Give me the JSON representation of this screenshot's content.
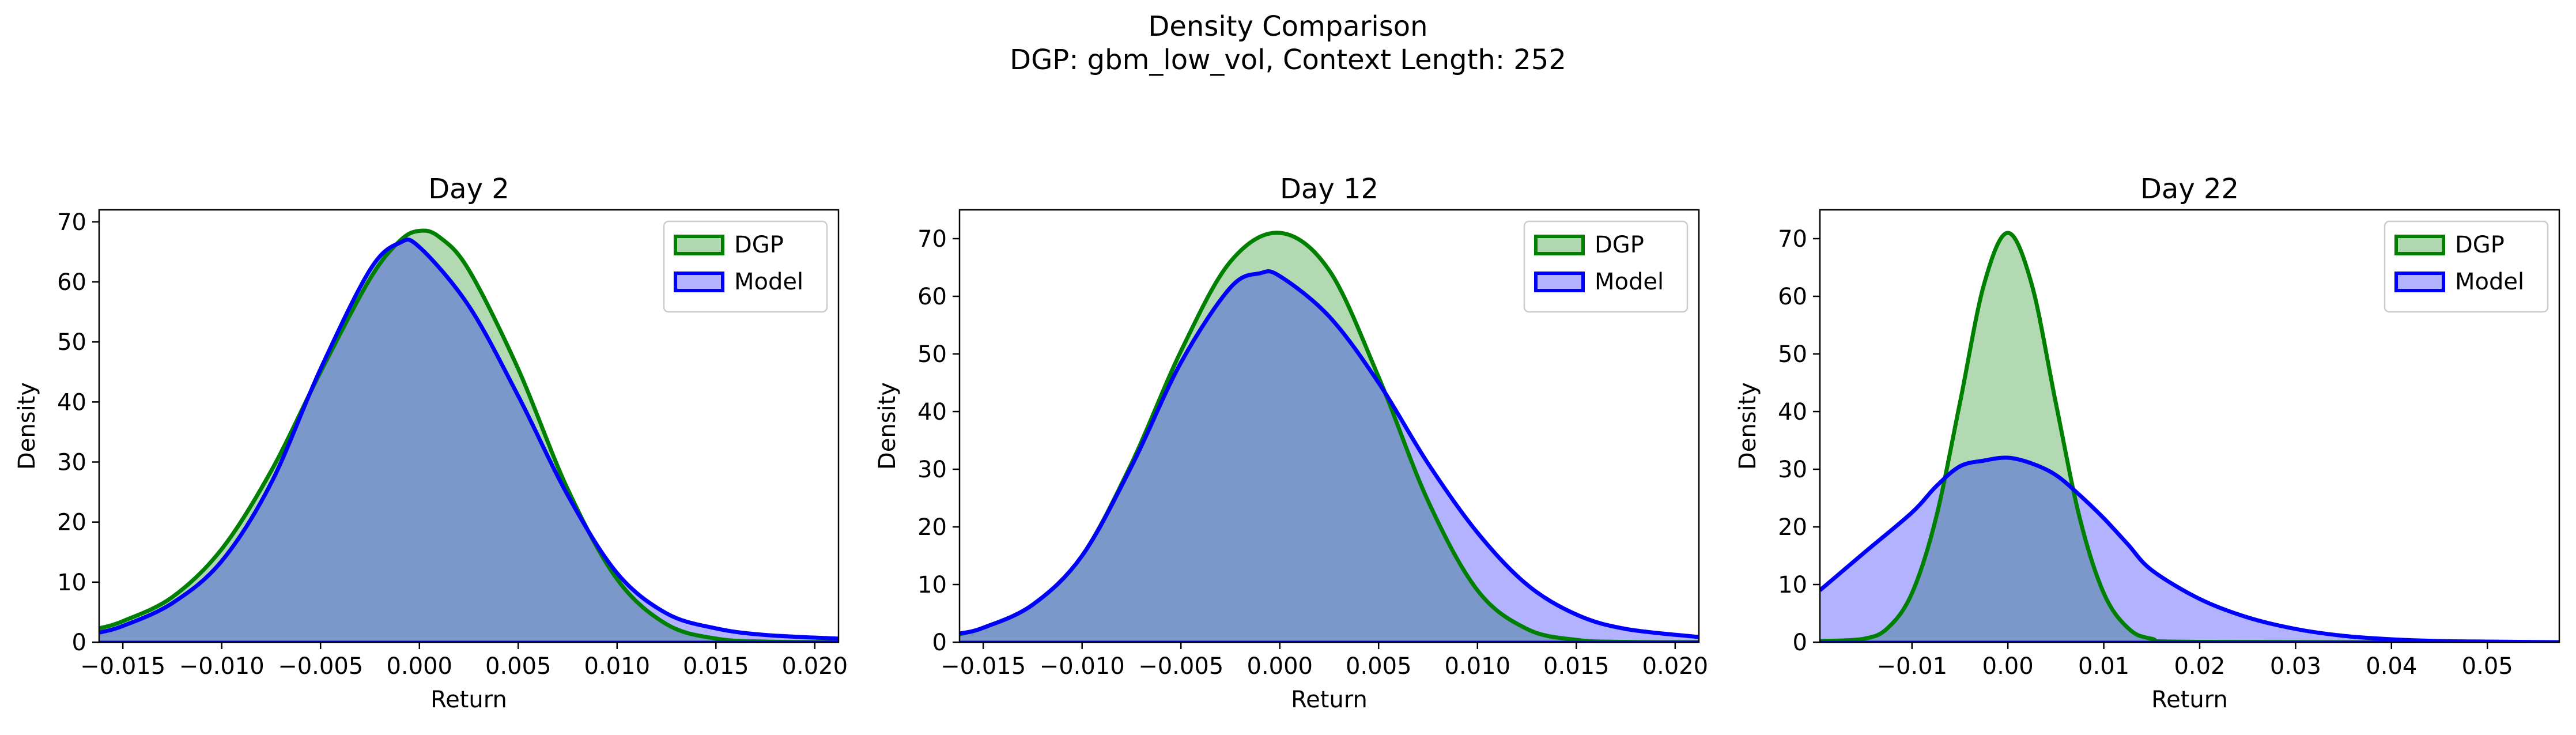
{
  "figure": {
    "title_line1": "Density Comparison",
    "title_line2": "DGP: gbm_low_vol, Context Length: 252"
  },
  "colors": {
    "dgp_line": "#008000",
    "dgp_fill": "#b2d8b2",
    "model_line": "#0000ff",
    "model_fill": "#b2b2ff",
    "overlap_fill": "#7f97c8"
  },
  "chart_data": [
    {
      "type": "area",
      "title": "Day 2",
      "xlabel": "Return",
      "ylabel": "Density",
      "xlim": [
        -0.0162,
        0.0212
      ],
      "ylim": [
        0,
        72
      ],
      "xticks": [
        -0.015,
        -0.01,
        -0.005,
        0.0,
        0.005,
        0.01,
        0.015,
        0.02
      ],
      "xtick_labels": [
        "−0.015",
        "−0.010",
        "−0.005",
        "0.000",
        "0.005",
        "0.010",
        "0.015",
        "0.020"
      ],
      "yticks": [
        0,
        10,
        20,
        30,
        40,
        50,
        60,
        70
      ],
      "ytick_labels": [
        "0",
        "10",
        "20",
        "30",
        "40",
        "50",
        "60",
        "70"
      ],
      "legend": {
        "position": "upper right",
        "entries": [
          "DGP",
          "Model"
        ]
      },
      "series": [
        {
          "name": "DGP",
          "x": [
            -0.0162,
            -0.015,
            -0.0125,
            -0.01,
            -0.0075,
            -0.005,
            -0.0025,
            -0.001,
            0.0,
            0.001,
            0.0025,
            0.005,
            0.0075,
            0.01,
            0.0125,
            0.015,
            0.0175,
            0.0212
          ],
          "y": [
            2.3,
            3.5,
            7.5,
            15.5,
            28.5,
            45.0,
            60.5,
            66.8,
            68.5,
            67.5,
            62.0,
            45.5,
            25.5,
            10.5,
            3.0,
            0.6,
            0.1,
            0.0
          ]
        },
        {
          "name": "Model",
          "x": [
            -0.0162,
            -0.015,
            -0.0125,
            -0.01,
            -0.0075,
            -0.005,
            -0.0025,
            -0.001,
            0.0,
            0.0025,
            0.005,
            0.0075,
            0.01,
            0.0125,
            0.015,
            0.0175,
            0.0212
          ],
          "y": [
            1.6,
            2.7,
            6.5,
            13.5,
            26.5,
            45.5,
            62.0,
            66.5,
            65.8,
            56.0,
            41.0,
            24.5,
            11.5,
            4.8,
            2.3,
            1.2,
            0.6
          ]
        }
      ]
    },
    {
      "type": "area",
      "title": "Day 12",
      "xlabel": "Return",
      "ylabel": "Density",
      "xlim": [
        -0.0162,
        0.0212
      ],
      "ylim": [
        0,
        75
      ],
      "xticks": [
        -0.015,
        -0.01,
        -0.005,
        0.0,
        0.005,
        0.01,
        0.015,
        0.02
      ],
      "xtick_labels": [
        "−0.015",
        "−0.010",
        "−0.005",
        "0.000",
        "0.005",
        "0.010",
        "0.015",
        "0.020"
      ],
      "yticks": [
        0,
        10,
        20,
        30,
        40,
        50,
        60,
        70
      ],
      "ytick_labels": [
        "0",
        "10",
        "20",
        "30",
        "40",
        "50",
        "60",
        "70"
      ],
      "legend": {
        "position": "upper right",
        "entries": [
          "DGP",
          "Model"
        ]
      },
      "series": [
        {
          "name": "DGP",
          "x": [
            -0.0162,
            -0.015,
            -0.0125,
            -0.01,
            -0.0075,
            -0.005,
            -0.0025,
            0.0,
            0.0025,
            0.005,
            0.0075,
            0.01,
            0.0125,
            0.015,
            0.0175,
            0.0212
          ],
          "y": [
            1.4,
            2.5,
            6.5,
            15.0,
            31.0,
            50.5,
            66.0,
            71.0,
            64.5,
            46.0,
            24.5,
            9.0,
            2.3,
            0.4,
            0.05,
            0.0
          ]
        },
        {
          "name": "Model",
          "x": [
            -0.0162,
            -0.015,
            -0.0125,
            -0.01,
            -0.0075,
            -0.005,
            -0.0025,
            -0.001,
            0.0,
            0.0025,
            0.005,
            0.0075,
            0.01,
            0.0125,
            0.015,
            0.0175,
            0.0212
          ],
          "y": [
            1.5,
            2.5,
            6.5,
            15.0,
            30.5,
            48.5,
            61.5,
            64.0,
            63.5,
            56.5,
            45.0,
            31.0,
            19.0,
            10.0,
            4.8,
            2.3,
            0.9
          ]
        }
      ]
    },
    {
      "type": "area",
      "title": "Day 22",
      "xlabel": "Return",
      "ylabel": "Density",
      "xlim": [
        -0.0196,
        0.0575
      ],
      "ylim": [
        0,
        75
      ],
      "xticks": [
        -0.01,
        0.0,
        0.01,
        0.02,
        0.03,
        0.04,
        0.05
      ],
      "xtick_labels": [
        "−0.01",
        "0.00",
        "0.01",
        "0.02",
        "0.03",
        "0.04",
        "0.05"
      ],
      "yticks": [
        0,
        10,
        20,
        30,
        40,
        50,
        60,
        70
      ],
      "ytick_labels": [
        "0",
        "10",
        "20",
        "30",
        "40",
        "50",
        "60",
        "70"
      ],
      "legend": {
        "position": "upper right",
        "entries": [
          "DGP",
          "Model"
        ]
      },
      "series": [
        {
          "name": "DGP",
          "x": [
            -0.0196,
            -0.015,
            -0.0125,
            -0.01,
            -0.0075,
            -0.005,
            -0.0025,
            0.0,
            0.0025,
            0.005,
            0.0075,
            0.01,
            0.0125,
            0.015,
            0.02,
            0.0575
          ],
          "y": [
            0.2,
            0.6,
            2.5,
            8.5,
            21.5,
            41.5,
            62.0,
            71.0,
            62.0,
            41.5,
            21.5,
            8.5,
            2.5,
            0.6,
            0.05,
            0.0
          ]
        },
        {
          "name": "Model",
          "x": [
            -0.0196,
            -0.015,
            -0.01,
            -0.0075,
            -0.005,
            -0.0025,
            0.0,
            0.0025,
            0.005,
            0.0075,
            0.01,
            0.0125,
            0.015,
            0.02,
            0.025,
            0.03,
            0.035,
            0.04,
            0.045,
            0.05,
            0.0575
          ],
          "y": [
            9.0,
            15.5,
            22.5,
            27.0,
            30.5,
            31.5,
            32.0,
            31.0,
            29.0,
            25.5,
            21.5,
            17.0,
            12.5,
            7.5,
            4.3,
            2.3,
            1.1,
            0.5,
            0.2,
            0.1,
            0.0
          ]
        }
      ]
    }
  ]
}
